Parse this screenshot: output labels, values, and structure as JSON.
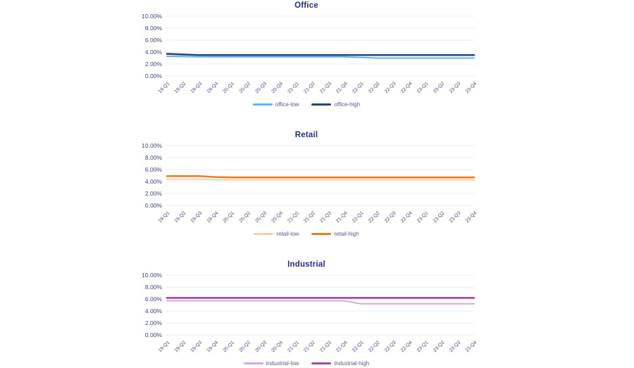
{
  "page": {
    "background": "#ffffff"
  },
  "theme": {
    "title_color": "#262d87",
    "tick_color": "#3f4680",
    "grid_color": "#ededf3",
    "legend_text_color": "#565b8d"
  },
  "chart_data": [
    {
      "type": "line",
      "title": "Office",
      "categories": [
        "19-Q1",
        "19-Q2",
        "19-Q3",
        "19-Q4",
        "20-Q1",
        "20-Q2",
        "20-Q3",
        "20-Q4",
        "21-Q1",
        "21-Q2",
        "21-Q3",
        "21-Q4",
        "22-Q1",
        "22-Q2",
        "22-Q3",
        "22-Q4",
        "23-Q1",
        "23-Q2",
        "23-Q3",
        "23-Q4"
      ],
      "yticks": [
        "10.00%",
        "8.00%",
        "6.00%",
        "4.00%",
        "2.00%",
        "0.00%"
      ],
      "ylim": [
        0,
        10
      ],
      "grid": true,
      "legend_position": "bottom",
      "legend_visible": true,
      "series": [
        {
          "name": "office-low",
          "color": "#5bb4ea",
          "values": [
            3.3,
            3.25,
            3.2,
            3.2,
            3.2,
            3.2,
            3.2,
            3.2,
            3.2,
            3.2,
            3.2,
            3.2,
            3.1,
            3.0,
            3.0,
            3.0,
            3.0,
            3.0,
            3.0,
            3.0
          ]
        },
        {
          "name": "office-high",
          "color": "#26418f",
          "values": [
            3.7,
            3.6,
            3.5,
            3.5,
            3.5,
            3.5,
            3.5,
            3.5,
            3.5,
            3.5,
            3.5,
            3.5,
            3.5,
            3.5,
            3.5,
            3.5,
            3.5,
            3.5,
            3.5,
            3.5
          ]
        }
      ]
    },
    {
      "type": "line",
      "title": "Retail",
      "categories": [
        "19-Q1",
        "19-Q2",
        "19-Q3",
        "19-Q4",
        "20-Q1",
        "20-Q2",
        "20-Q3",
        "20-Q4",
        "21-Q1",
        "21-Q2",
        "21-Q3",
        "21-Q4",
        "22-Q1",
        "22-Q2",
        "22-Q3",
        "22-Q4",
        "23-Q1",
        "23-Q2",
        "23-Q3",
        "23-Q4"
      ],
      "yticks": [
        "10.00%",
        "8.00%",
        "6.00%",
        "4.00%",
        "2.00%",
        "0.00%"
      ],
      "ylim": [
        0,
        10
      ],
      "grid": true,
      "legend_position": "bottom",
      "legend_visible": true,
      "series": [
        {
          "name": "retail-low",
          "color": "#f9cfa9",
          "values": [
            4.4,
            4.4,
            4.4,
            4.3,
            4.3,
            4.3,
            4.3,
            4.3,
            4.3,
            4.3,
            4.3,
            4.3,
            4.3,
            4.3,
            4.3,
            4.3,
            4.3,
            4.3,
            4.3,
            4.3
          ]
        },
        {
          "name": "retail-high",
          "color": "#e87d2a",
          "values": [
            4.9,
            4.9,
            4.9,
            4.75,
            4.7,
            4.7,
            4.7,
            4.7,
            4.7,
            4.7,
            4.7,
            4.7,
            4.7,
            4.7,
            4.7,
            4.7,
            4.7,
            4.7,
            4.7,
            4.7
          ]
        }
      ]
    },
    {
      "type": "line",
      "title": "Industrial",
      "categories": [
        "19-Q1",
        "19-Q2",
        "19-Q3",
        "19-Q4",
        "20-Q1",
        "20-Q2",
        "20-Q3",
        "20-Q4",
        "21-Q1",
        "21-Q2",
        "21-Q3",
        "21-Q4",
        "22-Q1",
        "22-Q2",
        "22-Q3",
        "22-Q4",
        "23-Q1",
        "23-Q2",
        "23-Q3",
        "23-Q4"
      ],
      "yticks": [
        "10.00%",
        "8.00%",
        "6.00%",
        "4.00%",
        "2.00%",
        "0.00%"
      ],
      "ylim": [
        0,
        10
      ],
      "grid": true,
      "legend_position": "bottom",
      "legend_visible": true,
      "series": [
        {
          "name": "industrial-low",
          "color": "#d9a6df",
          "values": [
            5.7,
            5.7,
            5.7,
            5.7,
            5.7,
            5.7,
            5.7,
            5.7,
            5.7,
            5.7,
            5.7,
            5.7,
            5.2,
            5.2,
            5.2,
            5.2,
            5.2,
            5.2,
            5.2,
            5.2
          ]
        },
        {
          "name": "industrial-high",
          "color": "#a04da3",
          "values": [
            6.2,
            6.2,
            6.2,
            6.2,
            6.2,
            6.2,
            6.2,
            6.2,
            6.2,
            6.2,
            6.2,
            6.2,
            6.2,
            6.2,
            6.2,
            6.2,
            6.2,
            6.2,
            6.2,
            6.2
          ]
        }
      ]
    }
  ]
}
